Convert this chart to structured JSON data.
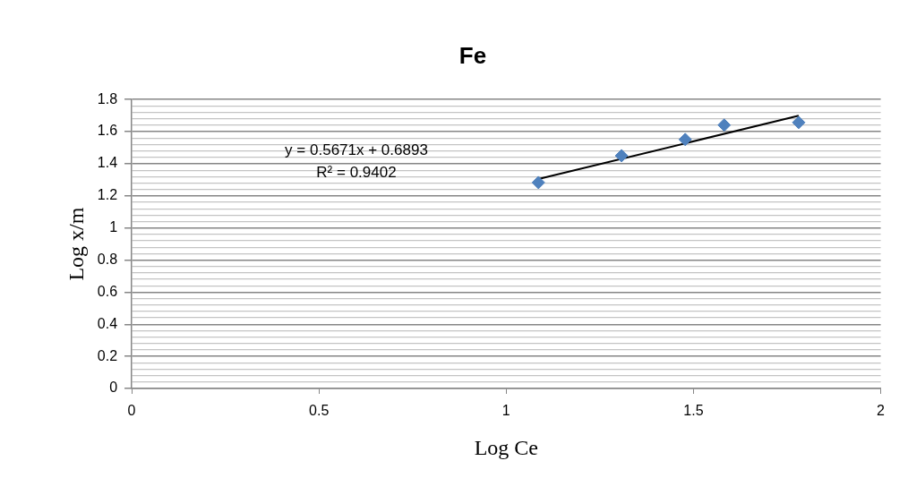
{
  "chart_data": {
    "type": "scatter",
    "title": "Fe",
    "xlabel": "Log Ce",
    "ylabel": "Log x/m",
    "annotations": [
      "y = 0.5671x + 0.6893",
      "R² = 0.9402"
    ],
    "series": [
      {
        "type": "scatter",
        "color": "#4f81bd",
        "marker": "diamond",
        "x": [
          1.086,
          1.308,
          1.478,
          1.582,
          1.781
        ],
        "values": [
          1.283,
          1.45,
          1.551,
          1.641,
          1.657
        ]
      },
      {
        "type": "line",
        "color": "#000000",
        "marker": "none",
        "line_style": "solid",
        "x": [
          1.086,
          1.781
        ],
        "values": [
          1.305,
          1.699
        ]
      }
    ],
    "xlim": [
      0,
      2
    ],
    "xticks": [
      0,
      0.5,
      1,
      1.5,
      2
    ],
    "ylim": [
      0,
      1.8
    ],
    "yticks": [
      0,
      {
        "value": 0.04,
        "label": null
      },
      {
        "value": 0.08,
        "label": null
      },
      {
        "value": 0.12,
        "label": null
      },
      {
        "value": 0.16,
        "label": null
      },
      0.2,
      {
        "value": 0.24,
        "label": null
      },
      {
        "value": 0.28,
        "label": null
      },
      {
        "value": 0.32,
        "label": null
      },
      {
        "value": 0.36,
        "label": null
      },
      0.4,
      {
        "value": 0.44,
        "label": null
      },
      {
        "value": 0.48,
        "label": null
      },
      {
        "value": 0.52,
        "label": null
      },
      {
        "value": 0.56,
        "label": null
      },
      0.6,
      {
        "value": 0.64,
        "label": null
      },
      {
        "value": 0.68,
        "label": null
      },
      {
        "value": 0.72,
        "label": null
      },
      {
        "value": 0.76,
        "label": null
      },
      0.8,
      {
        "value": 0.84,
        "label": null
      },
      {
        "value": 0.88,
        "label": null
      },
      {
        "value": 0.92,
        "label": null
      },
      {
        "value": 0.96,
        "label": null
      },
      1,
      {
        "value": 1.04,
        "label": null
      },
      {
        "value": 1.08,
        "label": null
      },
      {
        "value": 1.12,
        "label": null
      },
      {
        "value": 1.16,
        "label": null
      },
      1.2,
      {
        "value": 1.24,
        "label": null
      },
      {
        "value": 1.28,
        "label": null
      },
      {
        "value": 1.32,
        "label": null
      },
      {
        "value": 1.36,
        "label": null
      },
      1.4,
      {
        "value": 1.44,
        "label": null
      },
      {
        "value": 1.48,
        "label": null
      },
      {
        "value": 1.52,
        "label": null
      },
      {
        "value": 1.56,
        "label": null
      },
      1.6,
      {
        "value": 1.64,
        "label": null
      },
      {
        "value": 1.68,
        "label": null
      },
      {
        "value": 1.72,
        "label": null
      },
      {
        "value": 1.76,
        "label": null
      },
      1.8
    ],
    "grid": "y",
    "legend": false
  }
}
